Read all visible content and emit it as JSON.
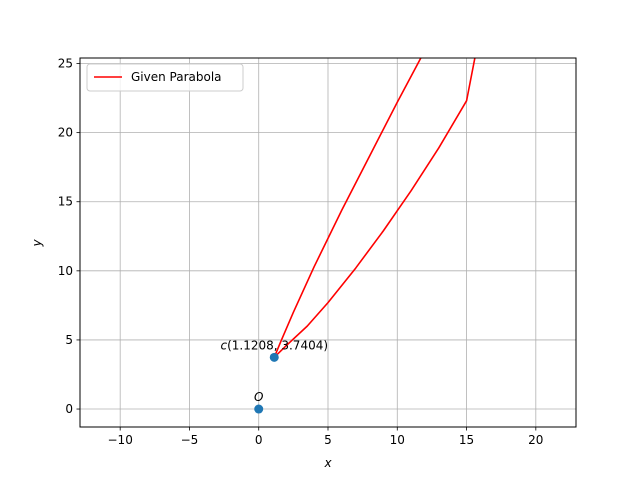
{
  "chart_data": {
    "type": "line",
    "title": "",
    "xlabel": "x",
    "ylabel": "y",
    "xlim": [
      -12.9,
      22.9
    ],
    "ylim": [
      -1.3,
      25.4
    ],
    "x_ticks": [
      -10,
      -5,
      0,
      5,
      10,
      15,
      20
    ],
    "x_tick_labels": [
      "−10",
      "−5",
      "0",
      "5",
      "10",
      "15",
      "20"
    ],
    "y_ticks": [
      0,
      5,
      10,
      15,
      20,
      25
    ],
    "y_tick_labels": [
      "0",
      "5",
      "10",
      "15",
      "20",
      "25"
    ],
    "grid": true,
    "legend_position": "top-left",
    "series": [
      {
        "name": "Given Parabola",
        "color": "#ff0000",
        "x": [
          11.7,
          10.0,
          8.0,
          6.0,
          4.0,
          2.5,
          1.6,
          1.1208,
          2.0,
          3.5,
          5.0,
          7.0,
          9.0,
          11.0,
          13.0,
          15.0,
          15.6
        ],
        "y": [
          25.4,
          22.2,
          18.3,
          14.4,
          10.3,
          7.0,
          4.9,
          3.7404,
          4.6,
          6.0,
          7.7,
          10.2,
          12.9,
          15.8,
          18.9,
          22.3,
          25.4
        ]
      }
    ],
    "points": [
      {
        "x": 1.1208,
        "y": 3.7404,
        "label": "c(1.1208, 3.7404)",
        "label_prefix": "c",
        "label_rest": "(1.1208, 3.7404)",
        "color": "#1f77b4"
      },
      {
        "x": 0,
        "y": 0,
        "label": "O",
        "color": "#1f77b4"
      }
    ]
  }
}
